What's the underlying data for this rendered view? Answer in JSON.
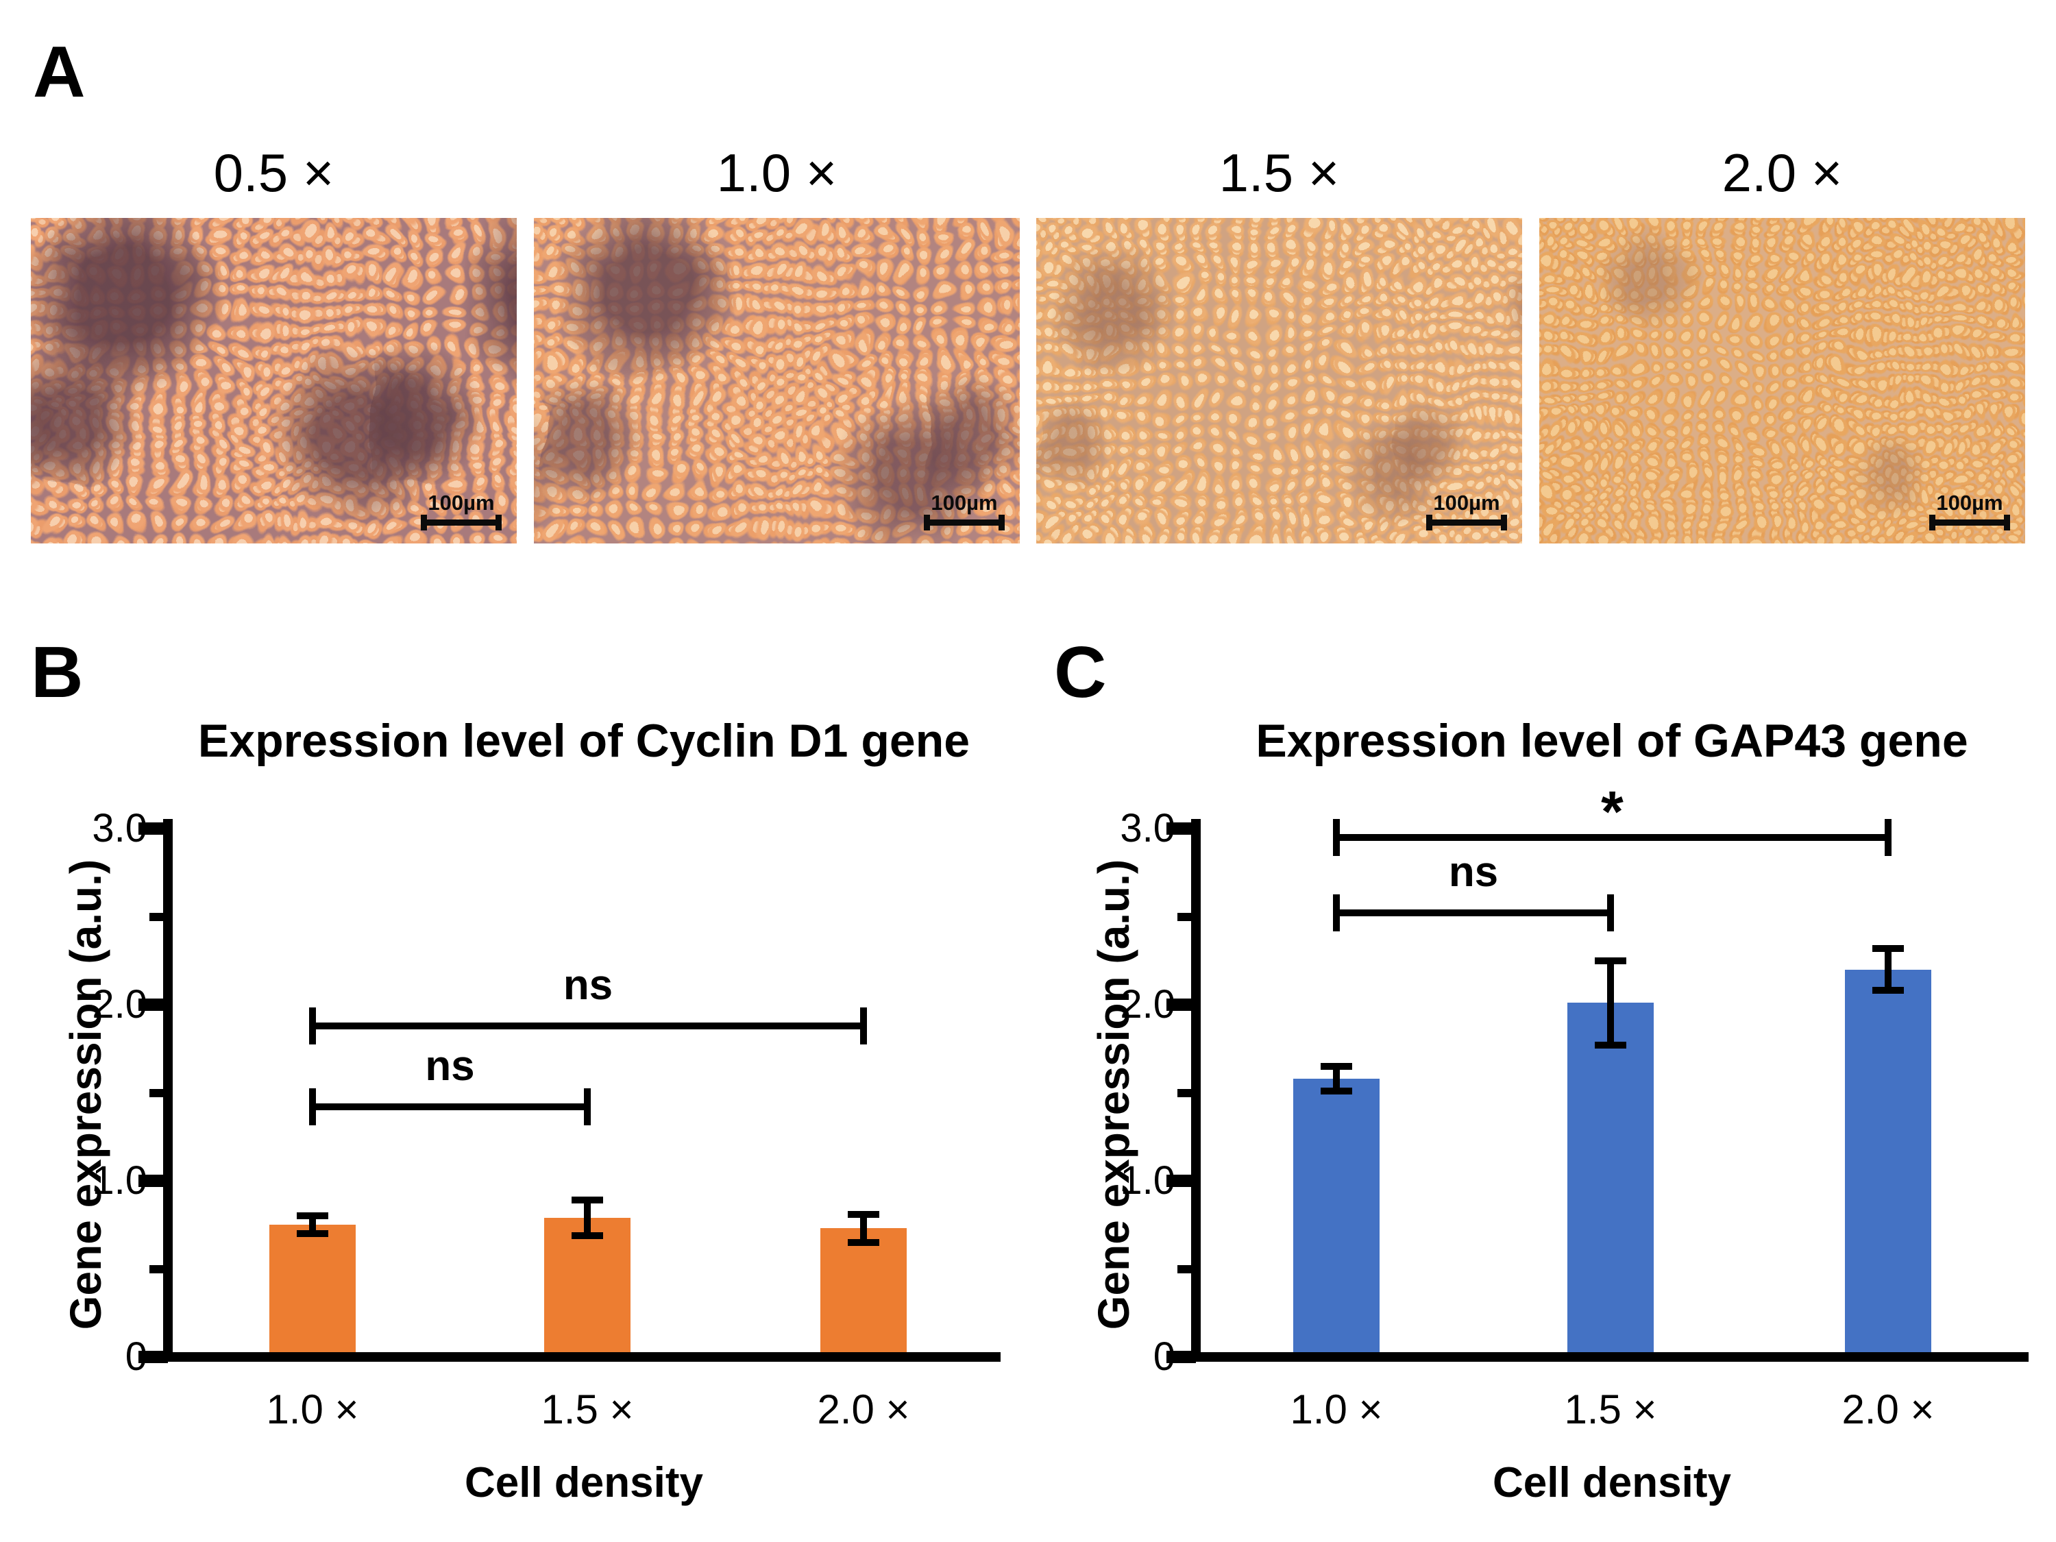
{
  "panelA": {
    "letter": "A",
    "scalebar_label": "100µm",
    "images": [
      {
        "label": "0.5 ×",
        "density": "sparse, large dark cell-free patches",
        "palette": {
          "base": "#a87a7c",
          "cell": "#f4c6a2",
          "patch": "#634049"
        }
      },
      {
        "label": "1.0 ×",
        "density": "moderate, frequent dark patches",
        "palette": {
          "base": "#b28480",
          "cell": "#f5c8a0",
          "patch": "#68444c"
        }
      },
      {
        "label": "1.5 ×",
        "density": "dense, few small dark patches",
        "palette": {
          "base": "#d0a382",
          "cell": "#f6d2a5",
          "patch": "#946554"
        }
      },
      {
        "label": "2.0 ×",
        "density": "near-confluent, uniform",
        "palette": {
          "base": "#dcae87",
          "cell": "#f2c489",
          "patch": "#9d6f5b"
        }
      }
    ]
  },
  "chart_data": [
    {
      "type": "bar",
      "panel_letter": "B",
      "title": "Expression level of Cyclin D1 gene",
      "categories": [
        "1.0 ×",
        "1.5 ×",
        "2.0 ×"
      ],
      "values": [
        0.75,
        0.79,
        0.73
      ],
      "errors": [
        0.05,
        0.1,
        0.08
      ],
      "bar_color": "#ED7D31",
      "xlabel": "Cell density",
      "ylabel": "Gene expression (a.u.)",
      "ylim": [
        0,
        3.0
      ],
      "yticks": [
        {
          "v": 0,
          "label": "0"
        },
        {
          "v": 1,
          "label": "1.0"
        },
        {
          "v": 2,
          "label": "2.0"
        },
        {
          "v": 3,
          "label": "3.0"
        }
      ],
      "minor_ticks": [
        0.5,
        1.5,
        2.5
      ],
      "grid": false,
      "legend": null,
      "significance": [
        {
          "from": 0,
          "to": 1,
          "label": "ns",
          "y": 1.42
        },
        {
          "from": 0,
          "to": 2,
          "label": "ns",
          "y": 1.88
        }
      ]
    },
    {
      "type": "bar",
      "panel_letter": "C",
      "title": "Expression level of GAP43 gene",
      "categories": [
        "1.0 ×",
        "1.5 ×",
        "2.0 ×"
      ],
      "values": [
        1.58,
        2.01,
        2.2
      ],
      "errors": [
        0.07,
        0.24,
        0.12
      ],
      "bar_color": "#4472C4",
      "xlabel": "Cell density",
      "ylabel": "Gene expression (a.u.)",
      "ylim": [
        0,
        3.0
      ],
      "yticks": [
        {
          "v": 0,
          "label": "0"
        },
        {
          "v": 1,
          "label": "1.0"
        },
        {
          "v": 2,
          "label": "2.0"
        },
        {
          "v": 3,
          "label": "3.0"
        }
      ],
      "minor_ticks": [
        0.5,
        1.5,
        2.5
      ],
      "grid": false,
      "legend": null,
      "significance": [
        {
          "from": 0,
          "to": 1,
          "label": "ns",
          "y": 2.52
        },
        {
          "from": 0,
          "to": 2,
          "label": "*",
          "y": 2.95
        }
      ]
    }
  ]
}
